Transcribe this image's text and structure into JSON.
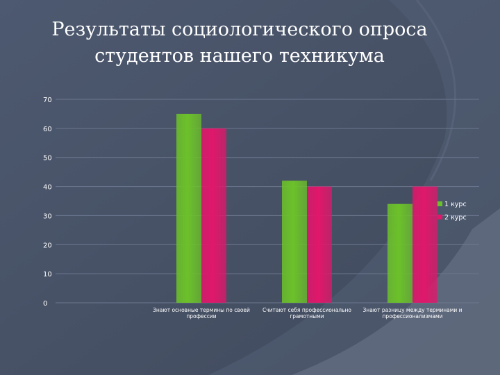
{
  "slide": {
    "title_line1": "Результаты социологического опроса",
    "title_line2": "студентов нашего техникума"
  },
  "colors": {
    "background": "#4a5568",
    "series_1": "#6cc12a",
    "series_2": "#e0176b",
    "text": "#ffffff"
  },
  "chart_data": {
    "type": "bar",
    "title": "",
    "xlabel": "",
    "ylabel": "",
    "ylim": [
      0,
      70
    ],
    "yticks": [
      0,
      10,
      20,
      30,
      40,
      50,
      60,
      70
    ],
    "grid": true,
    "legend_position": "right",
    "categories": [
      [
        "Знают основные термины по своей",
        "профессии"
      ],
      [
        "Считают себя профессионально",
        "грамотными"
      ],
      [
        "Знают разницу между терминами и",
        "профессионализмами"
      ]
    ],
    "series": [
      {
        "name": "1 курс",
        "values": [
          65,
          42,
          34
        ]
      },
      {
        "name": "2 курс",
        "values": [
          60,
          40,
          40
        ]
      }
    ]
  }
}
